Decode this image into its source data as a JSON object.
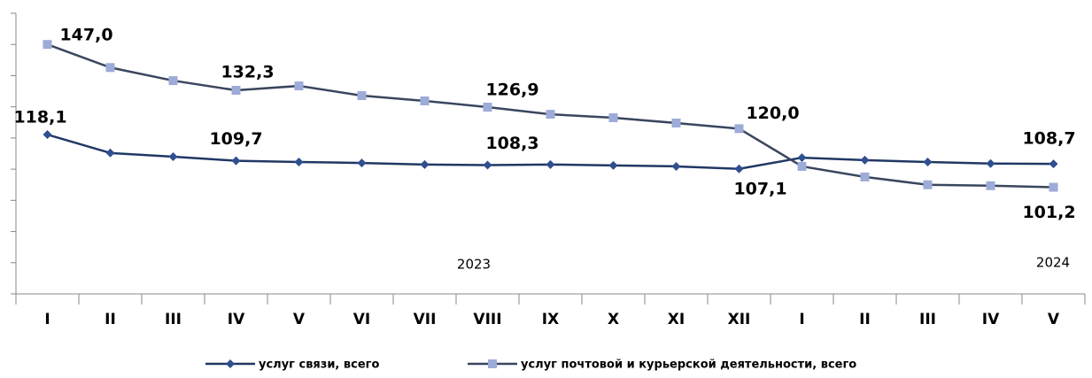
{
  "chart_data": {
    "type": "line",
    "categories": [
      "I",
      "II",
      "III",
      "IV",
      "V",
      "VI",
      "VII",
      "VIII",
      "IX",
      "X",
      "XI",
      "XII",
      "I",
      "II",
      "III",
      "IV",
      "V"
    ],
    "annotations": [
      "2023",
      "2024"
    ],
    "series": [
      {
        "name": "услуг связи, всего",
        "color": "#203864",
        "marker_color": "#2f4f8f",
        "marker": "diamond",
        "values": [
          118.1,
          112.2,
          111.0,
          109.7,
          109.3,
          109.0,
          108.5,
          108.3,
          108.5,
          108.2,
          107.9,
          107.1,
          110.7,
          109.9,
          109.3,
          108.8,
          108.7
        ],
        "value_labels": [
          "118,1",
          null,
          null,
          "109,7",
          null,
          null,
          null,
          "108,3",
          null,
          null,
          null,
          "107,1",
          null,
          null,
          null,
          null,
          "108,7"
        ]
      },
      {
        "name": "услуг почтовой и курьерской деятельности, всего",
        "color": "#3a465e",
        "marker_color": "#9dabd8",
        "marker": "square",
        "values": [
          147.0,
          139.6,
          135.4,
          132.3,
          133.7,
          130.6,
          128.9,
          126.9,
          124.6,
          123.5,
          121.8,
          120.0,
          107.9,
          104.5,
          102.0,
          101.7,
          101.2
        ],
        "value_labels": [
          "147,0",
          null,
          null,
          "132,3",
          null,
          null,
          null,
          "126,9",
          null,
          null,
          null,
          "120,0",
          null,
          null,
          null,
          null,
          "101,2"
        ]
      }
    ],
    "ylim": [
      67,
      157
    ],
    "yticks": [
      67,
      77,
      87,
      97,
      107,
      117,
      127,
      137,
      147,
      157
    ],
    "legend": "bottom"
  }
}
